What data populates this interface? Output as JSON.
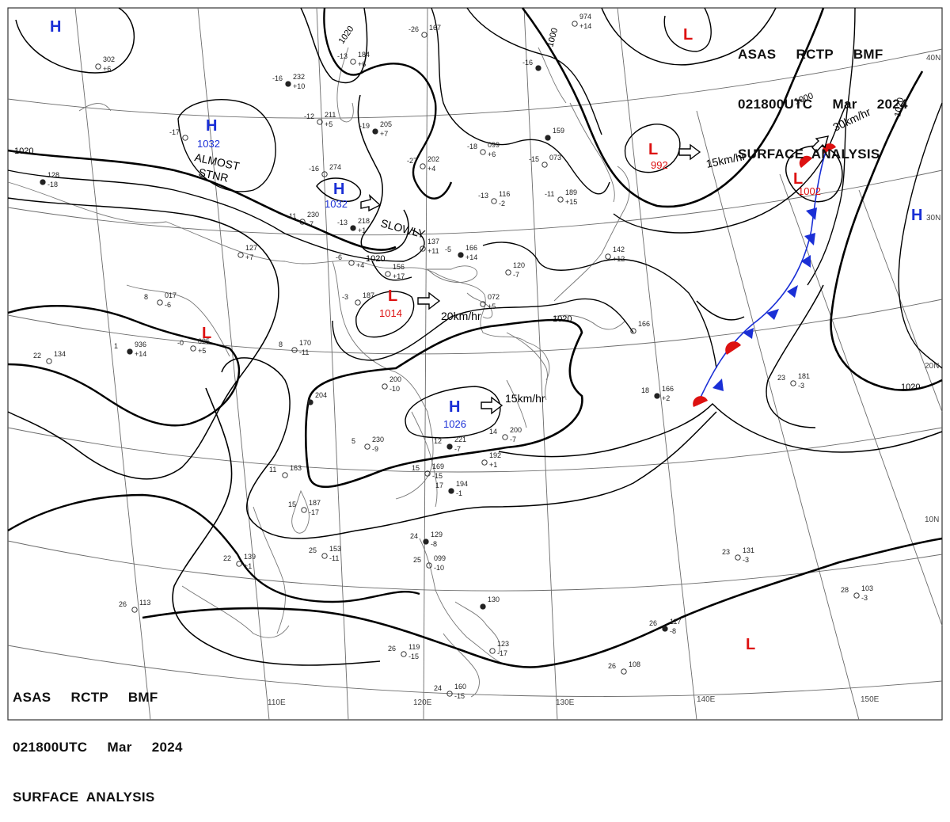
{
  "header": {
    "line1": "ASAS     RCTP     BMF",
    "line2": "021800UTC     Mar     2024",
    "line3": "SURFACE  ANALYSIS"
  },
  "colors": {
    "high": "#1a2fd6",
    "low": "#dd1111",
    "cold_front": "#1a2fd6",
    "warm_front": "#dd1111",
    "isobar": "#000000",
    "grid": "#555555",
    "coast": "#555555"
  },
  "lat_labels": [
    "40N",
    "30N",
    "20N",
    "10N"
  ],
  "lon_labels": [
    "110E",
    "120E",
    "130E",
    "140E",
    "150E"
  ],
  "isobar_labels": [
    "1020",
    "1020",
    "1000",
    "1000",
    "1020",
    "1020",
    "1020",
    "1020"
  ],
  "pressure_centers": [
    {
      "type": "H",
      "value": ""
    },
    {
      "type": "H",
      "value": "1032"
    },
    {
      "type": "H",
      "value": "1032"
    },
    {
      "type": "L",
      "value": ""
    },
    {
      "type": "L",
      "value": "992"
    },
    {
      "type": "L",
      "value": "1002"
    },
    {
      "type": "L",
      "value": "1014"
    },
    {
      "type": "H",
      "value": "1026"
    },
    {
      "type": "L",
      "value": ""
    },
    {
      "type": "H",
      "value": ""
    },
    {
      "type": "L",
      "value": ""
    }
  ],
  "motion_labels": [
    "15km/hr",
    "30km/hr",
    "20km/hr",
    "15km/hr",
    "SLOWLY"
  ],
  "stationary_label": [
    "ALMOST",
    "STNR"
  ],
  "stations": [
    {
      "t": "-16",
      "p": "232",
      "d": "+10"
    },
    {
      "t": "-13",
      "p": "184",
      "d": "+6"
    },
    {
      "t": "-26",
      "p": "167",
      "d": ""
    },
    {
      "t": "-12",
      "p": "211",
      "d": "+5"
    },
    {
      "t": "-19",
      "p": "205",
      "d": "+7"
    },
    {
      "t": "-18",
      "p": "099",
      "d": "+6"
    },
    {
      "t": "-27",
      "p": "202",
      "d": "+4"
    },
    {
      "t": "-16",
      "p": "274",
      "d": ""
    },
    {
      "t": "-13",
      "p": "218",
      "d": "+1"
    },
    {
      "t": "-11",
      "p": "230",
      "d": "-7"
    },
    {
      "t": "",
      "p": "302",
      "d": "+6"
    },
    {
      "t": "-17",
      "p": "",
      "d": ""
    },
    {
      "t": "",
      "p": "128",
      "d": "-18"
    },
    {
      "t": "",
      "p": "127",
      "d": "+7"
    },
    {
      "t": "-6",
      "p": "",
      "d": "+4"
    },
    {
      "t": "",
      "p": "137",
      "d": "+11"
    },
    {
      "t": "-5",
      "p": "166",
      "d": "+14"
    },
    {
      "t": "",
      "p": "156",
      "d": "+17"
    },
    {
      "t": "-3",
      "p": "187",
      "d": ""
    },
    {
      "t": "8",
      "p": "017",
      "d": "-6"
    },
    {
      "t": "1",
      "p": "936",
      "d": "+14"
    },
    {
      "t": "-0",
      "p": "025",
      "d": "+5"
    },
    {
      "t": "22",
      "p": "134",
      "d": ""
    },
    {
      "t": "8",
      "p": "170",
      "d": "-11"
    },
    {
      "t": "",
      "p": "204",
      "d": ""
    },
    {
      "t": "5",
      "p": "230",
      "d": "-9"
    },
    {
      "t": "",
      "p": "200",
      "d": "-10"
    },
    {
      "t": "14",
      "p": "200",
      "d": "-7"
    },
    {
      "t": "12",
      "p": "221",
      "d": "-7"
    },
    {
      "t": "",
      "p": "192",
      "d": "+1"
    },
    {
      "t": "11",
      "p": "163",
      "d": ""
    },
    {
      "t": "15",
      "p": "169",
      "d": "-15"
    },
    {
      "t": "17",
      "p": "194",
      "d": "-1"
    },
    {
      "t": "15",
      "p": "187",
      "d": "-17"
    },
    {
      "t": "25",
      "p": "153",
      "d": "-11"
    },
    {
      "t": "22",
      "p": "139",
      "d": "+1"
    },
    {
      "t": "24",
      "p": "129",
      "d": "-8"
    },
    {
      "t": "25",
      "p": "099",
      "d": "-10"
    },
    {
      "t": "26",
      "p": "113",
      "d": ""
    },
    {
      "t": "26",
      "p": "119",
      "d": "-15"
    },
    {
      "t": "",
      "p": "130",
      "d": ""
    },
    {
      "t": "",
      "p": "123",
      "d": "-17"
    },
    {
      "t": "24",
      "p": "160",
      "d": "-15"
    },
    {
      "t": "26",
      "p": "108",
      "d": ""
    },
    {
      "t": "26",
      "p": "117",
      "d": "-8"
    },
    {
      "t": "23",
      "p": "131",
      "d": "-3"
    },
    {
      "t": "28",
      "p": "103",
      "d": "-3"
    },
    {
      "t": "23",
      "p": "181",
      "d": "-3"
    },
    {
      "t": "18",
      "p": "166",
      "d": "+2"
    },
    {
      "t": "",
      "p": "166",
      "d": ""
    },
    {
      "t": "",
      "p": "120",
      "d": "-7"
    },
    {
      "t": "",
      "p": "072",
      "d": "+5"
    },
    {
      "t": "-16",
      "p": "",
      "d": ""
    },
    {
      "t": "-15",
      "p": "073",
      "d": ""
    },
    {
      "t": "-13",
      "p": "116",
      "d": "-2"
    },
    {
      "t": "-11",
      "p": "189",
      "d": "+15"
    },
    {
      "t": "",
      "p": "159",
      "d": ""
    },
    {
      "t": "",
      "p": "974",
      "d": "+14"
    },
    {
      "t": "",
      "p": "142",
      "d": "+12"
    }
  ]
}
